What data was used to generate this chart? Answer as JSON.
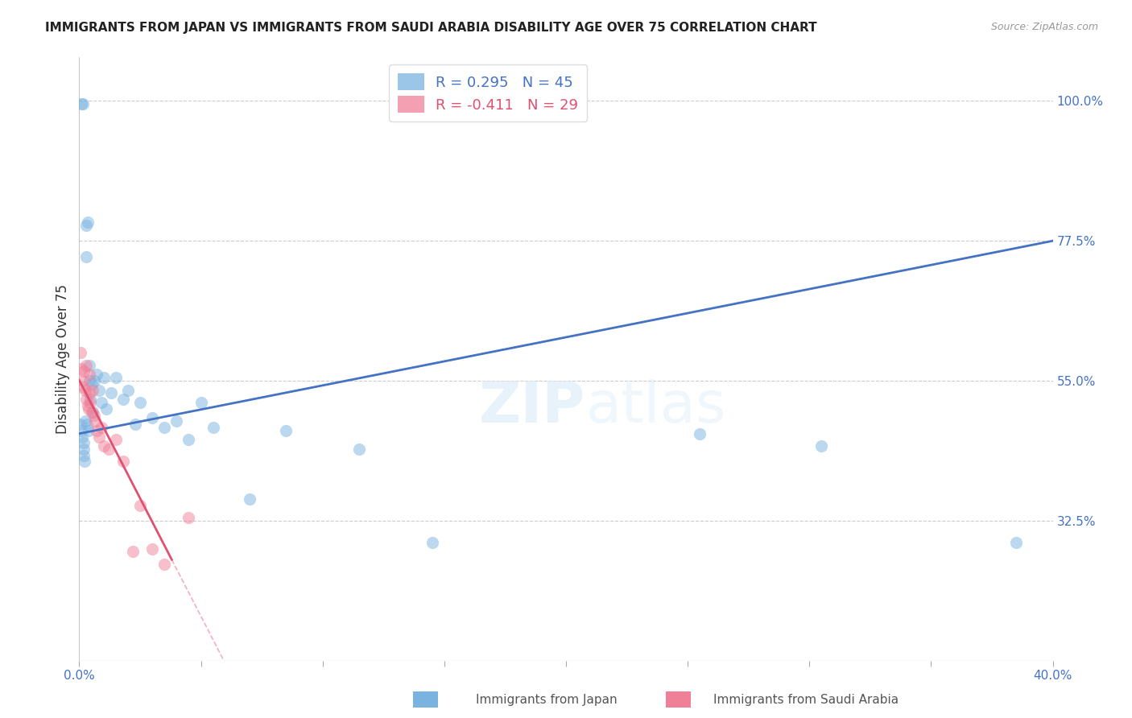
{
  "title": "IMMIGRANTS FROM JAPAN VS IMMIGRANTS FROM SAUDI ARABIA DISABILITY AGE OVER 75 CORRELATION CHART",
  "source": "Source: ZipAtlas.com",
  "ylabel": "Disability Age Over 75",
  "right_yticks": [
    32.5,
    55.0,
    77.5,
    100.0
  ],
  "right_ytick_labels": [
    "32.5%",
    "55.0%",
    "77.5%",
    "100.0%"
  ],
  "watermark": "ZIPatlas",
  "xmin": 0.0,
  "xmax": 40.0,
  "ymin": 10.0,
  "ymax": 107.0,
  "bg_color": "#ffffff",
  "grid_color": "#cccccc",
  "japan_color": "#7ab3e0",
  "saudi_color": "#f08098",
  "japan_line_color": "#4472c4",
  "saudi_line_color": "#e05070",
  "scatter_alpha": 0.5,
  "scatter_size": 120,
  "japan_x": [
    0.05,
    0.08,
    0.1,
    0.12,
    0.15,
    0.17,
    0.18,
    0.2,
    0.22,
    0.25,
    0.28,
    0.3,
    0.32,
    0.35,
    0.38,
    0.4,
    0.42,
    0.45,
    0.5,
    0.55,
    0.6,
    0.7,
    0.8,
    0.9,
    1.0,
    1.1,
    1.3,
    1.5,
    1.8,
    2.0,
    2.3,
    2.5,
    3.0,
    3.5,
    4.0,
    4.5,
    5.0,
    5.5,
    7.0,
    8.5,
    11.5,
    14.5,
    25.5,
    30.5,
    38.5
  ],
  "japan_y": [
    48.0,
    47.0,
    99.5,
    46.0,
    99.5,
    45.0,
    44.0,
    43.0,
    42.0,
    48.5,
    80.0,
    75.0,
    48.0,
    80.5,
    47.0,
    57.5,
    55.0,
    52.0,
    54.5,
    50.0,
    55.0,
    56.0,
    53.5,
    51.5,
    55.5,
    50.5,
    53.0,
    55.5,
    52.0,
    53.5,
    48.0,
    51.5,
    49.0,
    47.5,
    48.5,
    45.5,
    51.5,
    47.5,
    36.0,
    47.0,
    44.0,
    29.0,
    46.5,
    44.5,
    29.0
  ],
  "saudi_x": [
    0.05,
    0.1,
    0.15,
    0.18,
    0.2,
    0.25,
    0.28,
    0.3,
    0.35,
    0.38,
    0.4,
    0.42,
    0.45,
    0.5,
    0.55,
    0.6,
    0.65,
    0.7,
    0.8,
    0.9,
    1.0,
    1.2,
    1.5,
    1.8,
    2.2,
    2.5,
    3.0,
    3.5,
    4.5
  ],
  "saudi_y": [
    59.5,
    57.0,
    55.0,
    56.5,
    54.0,
    53.5,
    52.0,
    57.5,
    51.0,
    50.5,
    56.0,
    53.0,
    51.5,
    50.0,
    53.5,
    49.5,
    48.5,
    47.0,
    46.0,
    47.5,
    44.5,
    44.0,
    45.5,
    42.0,
    27.5,
    35.0,
    28.0,
    25.5,
    33.0
  ],
  "japan_line_x0": 0.0,
  "japan_line_y0": 46.5,
  "japan_line_x1": 40.0,
  "japan_line_y1": 77.5,
  "saudi_line_x0": 0.0,
  "saudi_line_y0": 55.0,
  "saudi_line_x1_solid": 3.8,
  "saudi_line_x1_dash": 14.0
}
